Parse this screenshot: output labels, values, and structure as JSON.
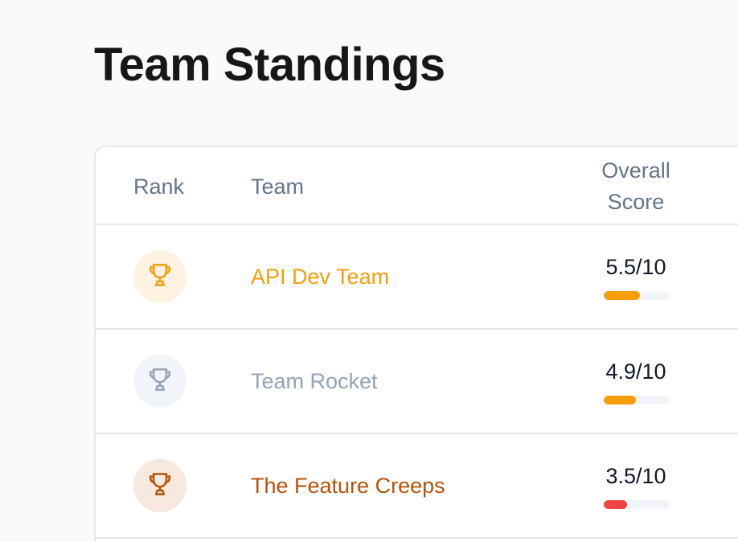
{
  "page": {
    "title": "Team Standings"
  },
  "table": {
    "headers": {
      "rank": "Rank",
      "team": "Team",
      "score_line1": "Overall",
      "score_line2": "Score"
    },
    "rows": [
      {
        "rank": 1,
        "rank_icon": "trophy-icon",
        "team": "API Dev Team",
        "score_text": "5.5/10",
        "score": 5.5,
        "max": 10,
        "badge_bg": "#fef3e2",
        "icon_color": "#f59e0b",
        "team_color": "#f59e0b",
        "bar_color": "#f59e0b"
      },
      {
        "rank": 2,
        "rank_icon": "trophy-icon",
        "team": "Team Rocket",
        "score_text": "4.9/10",
        "score": 4.9,
        "max": 10,
        "badge_bg": "#f1f5f9",
        "icon_color": "#94a3b8",
        "team_color": "#94a3b8",
        "bar_color": "#f59e0b"
      },
      {
        "rank": 3,
        "rank_icon": "trophy-icon",
        "team": "The Feature Creeps",
        "score_text": "3.5/10",
        "score": 3.5,
        "max": 10,
        "badge_bg": "#f7e8e0",
        "icon_color": "#b45309",
        "team_color": "#b45309",
        "bar_color": "#ef4444"
      }
    ]
  }
}
